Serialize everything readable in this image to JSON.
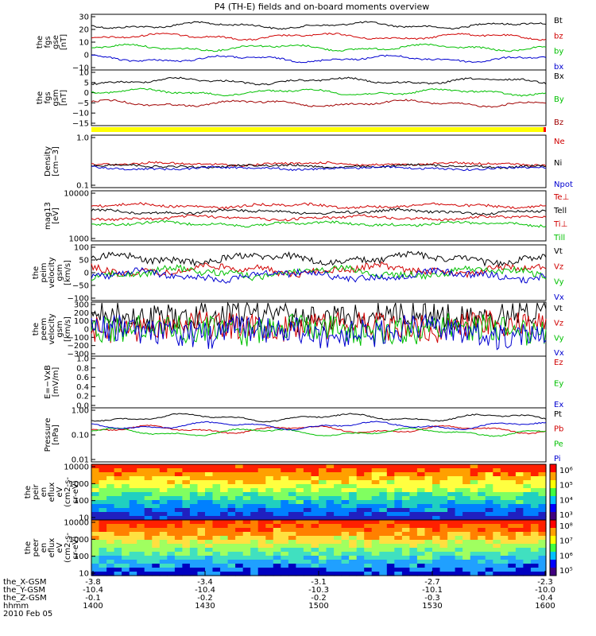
{
  "chart_data": {
    "type": "line",
    "title": "P4 (TH-E) fields and on-board moments overview",
    "date_label": "2010 Feb 05",
    "x_ticks": [
      {
        "label": "hhmm",
        "rows": [
          "-3.8",
          "-10.4",
          "-0.1",
          "1400"
        ]
      },
      {
        "rows": [
          "-3.4",
          "-10.4",
          "-0.2",
          "1430"
        ]
      },
      {
        "rows": [
          "-3.1",
          "-10.3",
          "-0.2",
          "1500"
        ]
      },
      {
        "rows": [
          "-2.7",
          "-10.1",
          "-0.3",
          "1530"
        ]
      },
      {
        "rows": [
          "-2.3",
          "-10.0",
          "-0.4",
          "1600"
        ]
      }
    ],
    "x_row_labels": [
      "the_X-GSM",
      "the_Y-GSM",
      "the_Z-GSM",
      "hhmm"
    ],
    "panels": [
      {
        "ylabel": [
          "the",
          "fgs",
          "gse",
          "[nT]"
        ],
        "yticks": [
          "30",
          "20",
          "10",
          "0",
          "−10"
        ],
        "series": [
          {
            "name": "Bt",
            "color": "#000000"
          },
          {
            "name": "bz",
            "color": "#d00000"
          },
          {
            "name": "by",
            "color": "#00c000"
          },
          {
            "name": "bx",
            "color": "#0000d0"
          }
        ]
      },
      {
        "ylabel": [
          "the",
          "fgs",
          "gsm",
          "[nT]"
        ],
        "yticks": [
          "10",
          "5",
          "0",
          "−5",
          "−10",
          "−15"
        ],
        "series": [
          {
            "name": "Bx",
            "color": "#000000"
          },
          {
            "name": "By",
            "color": "#00c000"
          },
          {
            "name": "Bz",
            "color": "#a00000"
          }
        ]
      },
      {
        "ylabel": [
          "Density",
          "[cm−3]"
        ],
        "yticks": [
          "1.0",
          "0.1"
        ],
        "series": [
          {
            "name": "Ne",
            "color": "#d00000"
          },
          {
            "name": "Ni",
            "color": "#000000"
          },
          {
            "name": "Npot",
            "color": "#0000d0"
          }
        ]
      },
      {
        "ylabel": [
          "mag13",
          "[eV]"
        ],
        "yticks": [
          "10000",
          "1000"
        ],
        "series": [
          {
            "name": "Te⊥",
            "color": "#d00000"
          },
          {
            "name": "Tell",
            "color": "#000000"
          },
          {
            "name": "Ti⊥",
            "color": "#d00000"
          },
          {
            "name": "Till",
            "color": "#00c000"
          }
        ]
      },
      {
        "ylabel": [
          "the",
          "peim",
          "velocity",
          "gsm",
          "[km/s]"
        ],
        "yticks": [
          "100",
          "50",
          "0",
          "−50",
          "−100"
        ],
        "series": [
          {
            "name": "Vt",
            "color": "#000000"
          },
          {
            "name": "Vz",
            "color": "#d00000"
          },
          {
            "name": "Vy",
            "color": "#00c000"
          },
          {
            "name": "Vx",
            "color": "#0000d0"
          }
        ]
      },
      {
        "ylabel": [
          "the",
          "peem",
          "velocity",
          "gsm",
          "[km/s]"
        ],
        "yticks": [
          "300",
          "200",
          "100",
          "0",
          "−100",
          "−200",
          "−300"
        ],
        "series": [
          {
            "name": "Vt",
            "color": "#000000"
          },
          {
            "name": "Vz",
            "color": "#d00000"
          },
          {
            "name": "Vy",
            "color": "#00c000"
          },
          {
            "name": "Vx",
            "color": "#0000d0"
          }
        ]
      },
      {
        "ylabel": [
          "E=−VxB",
          "[mV/m]"
        ],
        "yticks": [
          "1.0",
          "0.8",
          "0.6",
          "0.4",
          "0.2",
          "0.0"
        ],
        "series": [
          {
            "name": "Ez",
            "color": "#d00000"
          },
          {
            "name": "Ey",
            "color": "#00c000"
          },
          {
            "name": "Ex",
            "color": "#0000d0"
          }
        ]
      },
      {
        "ylabel": [
          "Pressure",
          "[nPa]"
        ],
        "yticks": [
          "1.00",
          "0.10",
          "0.01"
        ],
        "series": [
          {
            "name": "Pt",
            "color": "#000000"
          },
          {
            "name": "Pb",
            "color": "#d00000"
          },
          {
            "name": "Pe",
            "color": "#00c000"
          },
          {
            "name": "Pi",
            "color": "#0000d0"
          }
        ]
      },
      {
        "ylabel": [
          "the",
          "peir",
          "en",
          "eflux",
          "eV",
          "(cm2-s-",
          "sr-eV)"
        ],
        "yticks": [
          "10000",
          "1000",
          "100",
          "10"
        ],
        "colorbar": [
          "10⁶",
          "10⁵",
          "10⁴",
          "10³"
        ]
      },
      {
        "ylabel": [
          "the",
          "peer",
          "en",
          "eflux",
          "eV",
          "(cm2-s-",
          "sr-eV)"
        ],
        "yticks": [
          "10000",
          "1000",
          "100",
          "10"
        ],
        "colorbar": [
          "10⁸",
          "10⁷",
          "10⁶",
          "10⁵"
        ]
      }
    ]
  }
}
